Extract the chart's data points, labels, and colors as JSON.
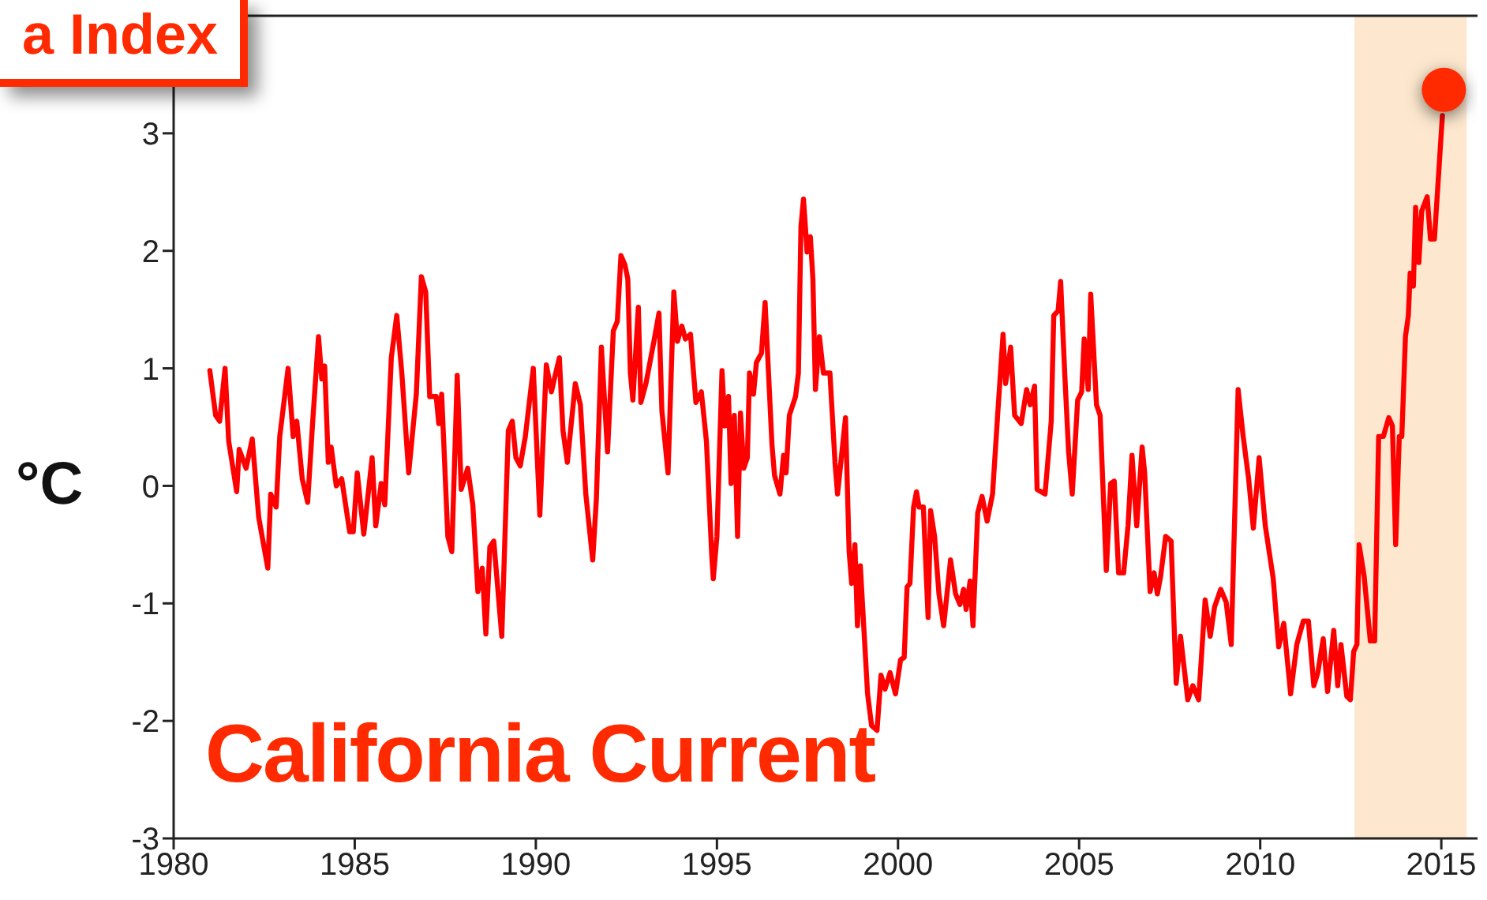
{
  "chart_data": {
    "type": "line",
    "title": "a Index",
    "ylabel": "°C",
    "annotations": [
      "California Current"
    ],
    "xlim": [
      1980,
      2016
    ],
    "xticks": [
      1980,
      1985,
      1990,
      1995,
      2000,
      2005,
      2010,
      2015
    ],
    "ylim": [
      -3,
      4
    ],
    "yticks": [
      -3,
      -2,
      -1,
      0,
      1,
      2,
      3
    ],
    "grid": false,
    "legend": false,
    "line_style": "solid",
    "bands": [
      {
        "axis": "x",
        "from": 2012.6,
        "to": 2015.7,
        "color": "#fde8cf"
      }
    ],
    "series": [
      {
        "color": "#ff0000",
        "marker": "none",
        "x": [
          1981.0,
          1981.16,
          1981.27,
          1981.42,
          1981.52,
          1981.74,
          1981.81,
          1982.0,
          1982.17,
          1982.35,
          1982.6,
          1982.68,
          1982.83,
          1982.93,
          1983.16,
          1983.3,
          1983.4,
          1983.55,
          1983.7,
          1983.84,
          1984.0,
          1984.09,
          1984.17,
          1984.27,
          1984.35,
          1984.49,
          1984.64,
          1984.86,
          1984.96,
          1985.07,
          1985.25,
          1985.48,
          1985.58,
          1985.73,
          1985.83,
          1986.01,
          1986.16,
          1986.3,
          1986.49,
          1986.7,
          1986.84,
          1986.96,
          1987.07,
          1987.25,
          1987.32,
          1987.4,
          1987.57,
          1987.68,
          1987.83,
          1987.94,
          1988.12,
          1988.26,
          1988.4,
          1988.52,
          1988.62,
          1988.73,
          1988.84,
          1989.06,
          1989.24,
          1989.35,
          1989.45,
          1989.57,
          1989.71,
          1989.93,
          1990.11,
          1990.29,
          1990.43,
          1990.55,
          1990.65,
          1990.75,
          1990.87,
          1991.09,
          1991.23,
          1991.38,
          1991.57,
          1991.67,
          1991.81,
          1991.98,
          1992.14,
          1992.25,
          1992.35,
          1992.46,
          1992.54,
          1992.61,
          1992.68,
          1992.83,
          1992.9,
          1993.04,
          1993.26,
          1993.4,
          1993.48,
          1993.65,
          1993.81,
          1993.91,
          1994.03,
          1994.13,
          1994.27,
          1994.42,
          1994.57,
          1994.71,
          1994.86,
          1994.9,
          1995.0,
          1995.14,
          1995.22,
          1995.32,
          1995.39,
          1995.48,
          1995.57,
          1995.65,
          1995.74,
          1995.84,
          1995.9,
          1996.01,
          1996.09,
          1996.23,
          1996.33,
          1996.52,
          1996.59,
          1996.74,
          1996.84,
          1996.91,
          1997.0,
          1997.17,
          1997.25,
          1997.32,
          1997.39,
          1997.49,
          1997.58,
          1997.65,
          1997.72,
          1997.83,
          1997.94,
          1998.12,
          1998.26,
          1998.33,
          1998.55,
          1998.65,
          1998.72,
          1998.81,
          1998.88,
          1998.96,
          1999.06,
          1999.16,
          1999.27,
          1999.42,
          1999.53,
          1999.64,
          1999.78,
          1999.93,
          2000.07,
          2000.17,
          2000.25,
          2000.33,
          2000.43,
          2000.51,
          2000.58,
          2000.7,
          2000.83,
          2000.9,
          2001.01,
          2001.13,
          2001.26,
          2001.45,
          2001.59,
          2001.71,
          2001.81,
          2001.88,
          2001.99,
          2002.07,
          2002.2,
          2002.32,
          2002.46,
          2002.61,
          2002.75,
          2002.9,
          2002.97,
          2003.11,
          2003.22,
          2003.4,
          2003.55,
          2003.65,
          2003.77,
          2003.84,
          2004.06,
          2004.23,
          2004.3,
          2004.42,
          2004.49,
          2004.61,
          2004.71,
          2004.81,
          2004.96,
          2005.07,
          2005.14,
          2005.25,
          2005.32,
          2005.48,
          2005.58,
          2005.75,
          2005.87,
          2005.97,
          2006.09,
          2006.23,
          2006.35,
          2006.46,
          2006.59,
          2006.74,
          2006.81,
          2006.96,
          2007.07,
          2007.16,
          2007.25,
          2007.39,
          2007.54,
          2007.68,
          2007.8,
          2008.0,
          2008.14,
          2008.3,
          2008.48,
          2008.62,
          2008.74,
          2008.91,
          2009.06,
          2009.2,
          2009.39,
          2009.53,
          2009.68,
          2009.81,
          2009.97,
          2010.14,
          2010.36,
          2010.51,
          2010.65,
          2010.84,
          2011.01,
          2011.19,
          2011.33,
          2011.48,
          2011.59,
          2011.74,
          2011.86,
          2012.03,
          2012.14,
          2012.23,
          2012.39,
          2012.49,
          2012.58,
          2012.67,
          2012.73,
          2012.87,
          2013.04,
          2013.16,
          2013.27,
          2013.4,
          2013.55,
          2013.65,
          2013.74,
          2013.84,
          2013.91,
          2014.01,
          2014.09,
          2014.14,
          2014.23,
          2014.29,
          2014.38,
          2014.46,
          2014.61,
          2014.7,
          2014.81,
          2015.03
        ],
        "values": [
          0.98,
          0.6,
          0.55,
          1.0,
          0.38,
          -0.05,
          0.31,
          0.15,
          0.4,
          -0.27,
          -0.7,
          -0.07,
          -0.18,
          0.42,
          1.0,
          0.42,
          0.55,
          0.06,
          -0.14,
          0.55,
          1.27,
          0.91,
          1.02,
          0.2,
          0.33,
          0.0,
          0.06,
          -0.39,
          -0.39,
          0.11,
          -0.41,
          0.24,
          -0.34,
          0.02,
          -0.16,
          1.09,
          1.45,
          0.96,
          0.11,
          0.78,
          1.78,
          1.65,
          0.76,
          0.76,
          0.53,
          0.78,
          -0.43,
          -0.56,
          0.94,
          -0.03,
          0.15,
          -0.16,
          -0.9,
          -0.7,
          -1.26,
          -0.52,
          -0.47,
          -1.28,
          0.47,
          0.55,
          0.24,
          0.17,
          0.42,
          1.0,
          -0.25,
          1.03,
          0.8,
          0.96,
          1.09,
          0.47,
          0.2,
          0.87,
          0.69,
          -0.07,
          -0.63,
          -0.12,
          1.18,
          0.29,
          1.32,
          1.4,
          1.96,
          1.88,
          1.76,
          0.96,
          0.73,
          1.52,
          0.71,
          0.87,
          1.23,
          1.47,
          0.64,
          0.11,
          1.65,
          1.23,
          1.36,
          1.25,
          1.29,
          0.71,
          0.8,
          0.38,
          -0.61,
          -0.79,
          -0.43,
          0.98,
          0.51,
          0.76,
          0.02,
          0.6,
          -0.43,
          0.62,
          0.15,
          0.24,
          0.96,
          0.78,
          1.05,
          1.13,
          1.56,
          0.35,
          0.09,
          -0.07,
          0.26,
          0.11,
          0.6,
          0.76,
          0.96,
          2.21,
          2.44,
          1.99,
          2.12,
          1.76,
          0.82,
          1.27,
          0.96,
          0.96,
          0.2,
          -0.07,
          0.58,
          -0.56,
          -0.83,
          -0.5,
          -1.19,
          -0.68,
          -1.23,
          -1.77,
          -2.04,
          -2.08,
          -1.61,
          -1.73,
          -1.59,
          -1.77,
          -1.48,
          -1.46,
          -0.86,
          -0.83,
          -0.18,
          -0.05,
          -0.18,
          -0.18,
          -1.12,
          -0.21,
          -0.43,
          -0.92,
          -1.19,
          -0.63,
          -0.92,
          -1.01,
          -0.88,
          -1.05,
          -0.81,
          -1.19,
          -0.23,
          -0.09,
          -0.3,
          -0.07,
          0.6,
          1.29,
          0.87,
          1.18,
          0.6,
          0.53,
          0.82,
          0.69,
          0.85,
          -0.03,
          -0.07,
          0.55,
          1.45,
          1.49,
          1.74,
          0.91,
          0.29,
          -0.07,
          0.73,
          0.8,
          1.25,
          0.82,
          1.63,
          0.69,
          0.6,
          -0.72,
          0.02,
          0.04,
          -0.74,
          -0.74,
          -0.34,
          0.26,
          -0.34,
          0.33,
          0.11,
          -0.9,
          -0.74,
          -0.92,
          -0.77,
          -0.43,
          -0.47,
          -1.68,
          -1.28,
          -1.82,
          -1.7,
          -1.82,
          -0.97,
          -1.28,
          -1.03,
          -0.88,
          -0.99,
          -1.35,
          0.82,
          0.42,
          0.06,
          -0.36,
          0.24,
          -0.34,
          -0.79,
          -1.37,
          -1.17,
          -1.77,
          -1.35,
          -1.15,
          -1.15,
          -1.7,
          -1.59,
          -1.3,
          -1.75,
          -1.23,
          -1.7,
          -1.35,
          -1.79,
          -1.82,
          -1.41,
          -1.35,
          -0.5,
          -0.77,
          -1.32,
          -1.32,
          0.42,
          0.42,
          0.58,
          0.51,
          -0.5,
          0.42,
          0.42,
          1.27,
          1.45,
          1.81,
          1.7,
          2.37,
          1.9,
          2.34,
          2.46,
          2.1,
          2.1,
          3.15
        ]
      },
      {
        "type": "scatter",
        "color": "#ff2a00",
        "marker": "circle",
        "x": [
          2015.07
        ],
        "values": [
          3.37
        ]
      }
    ]
  }
}
